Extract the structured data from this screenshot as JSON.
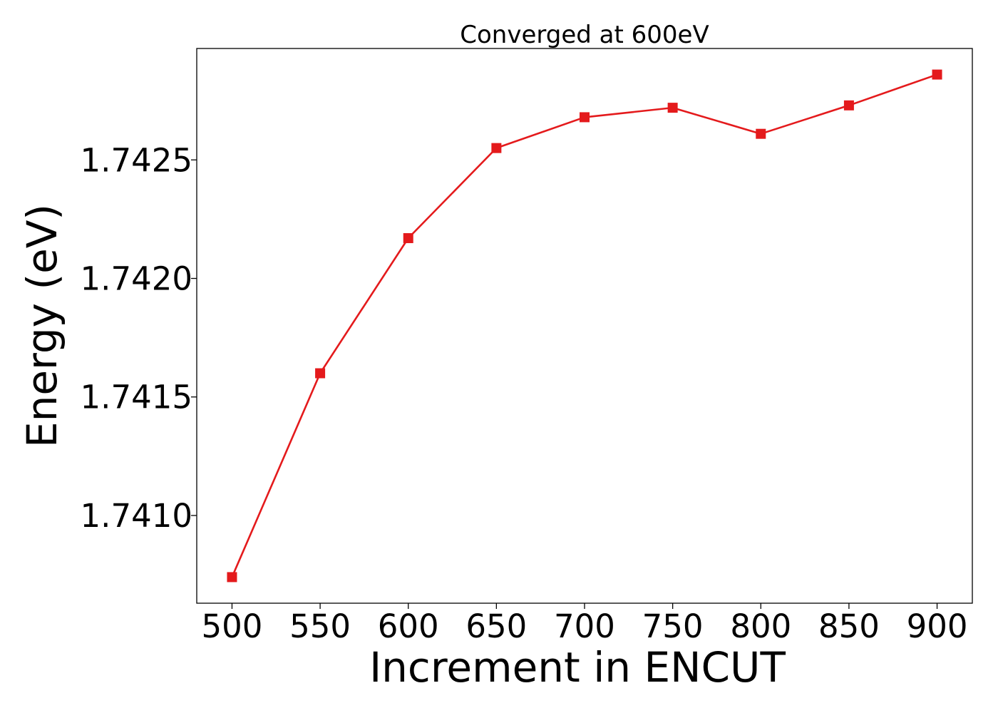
{
  "chart_data": {
    "type": "line",
    "title": "Converged at 600eV",
    "xlabel": "Increment in ENCUT",
    "ylabel": "Energy (eV)",
    "x": [
      500,
      550,
      600,
      650,
      700,
      750,
      800,
      850,
      900
    ],
    "series": [
      {
        "values": [
          1.74074,
          1.7416,
          1.74217,
          1.74255,
          1.74268,
          1.74272,
          1.74261,
          1.74273,
          1.74286
        ],
        "color": "#e41a1c",
        "marker": "square"
      }
    ],
    "xticks": [
      500,
      550,
      600,
      650,
      700,
      750,
      800,
      850,
      900
    ],
    "xtick_labels": [
      "500",
      "550",
      "600",
      "650",
      "700",
      "750",
      "800",
      "850",
      "900"
    ],
    "yticks": [
      1.741,
      1.7415,
      1.742,
      1.7425
    ],
    "ytick_labels": [
      "1.7410",
      "1.7415",
      "1.7420",
      "1.7425"
    ],
    "xlim": [
      480,
      920
    ],
    "ylim": [
      1.74063,
      1.74297
    ],
    "grid": false,
    "legend": false
  }
}
